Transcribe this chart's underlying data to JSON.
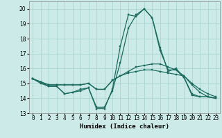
{
  "title": "",
  "xlabel": "Humidex (Indice chaleur)",
  "xlim": [
    -0.5,
    23.5
  ],
  "ylim": [
    13,
    20.5
  ],
  "yticks": [
    13,
    14,
    15,
    16,
    17,
    18,
    19,
    20
  ],
  "xticks": [
    0,
    1,
    2,
    3,
    4,
    5,
    6,
    7,
    8,
    9,
    10,
    11,
    12,
    13,
    14,
    15,
    16,
    17,
    18,
    19,
    20,
    21,
    22,
    23
  ],
  "bg_color": "#cceae7",
  "grid_color": "#aad4d0",
  "line_color": "#1a6b5e",
  "lines": [
    [
      15.3,
      15.1,
      14.8,
      14.8,
      14.3,
      14.4,
      14.6,
      14.7,
      13.3,
      13.3,
      14.6,
      17.5,
      19.6,
      19.5,
      20.0,
      19.4,
      17.4,
      15.8,
      16.0,
      15.4,
      14.2,
      14.1,
      14.1,
      14.0
    ],
    [
      15.3,
      15.1,
      14.9,
      14.9,
      14.9,
      14.9,
      14.9,
      15.0,
      14.6,
      14.6,
      15.2,
      15.5,
      15.7,
      15.8,
      15.9,
      15.9,
      15.8,
      15.7,
      15.6,
      15.5,
      15.0,
      14.6,
      14.3,
      14.1
    ],
    [
      15.3,
      15.1,
      14.9,
      14.9,
      14.9,
      14.9,
      14.9,
      15.0,
      14.6,
      14.6,
      15.2,
      15.5,
      15.8,
      16.1,
      16.2,
      16.3,
      16.3,
      16.1,
      15.9,
      15.5,
      14.9,
      14.4,
      14.1,
      14.0
    ],
    [
      15.3,
      15.0,
      14.8,
      14.8,
      14.3,
      14.4,
      14.5,
      14.7,
      13.4,
      13.4,
      14.5,
      16.4,
      18.7,
      19.6,
      20.0,
      19.4,
      17.2,
      15.9,
      15.9,
      15.4,
      14.3,
      14.1,
      14.1,
      14.0
    ]
  ],
  "tick_fontsize": 5.5,
  "xlabel_fontsize": 6.5,
  "marker_size": 2.0,
  "linewidth": 0.9
}
